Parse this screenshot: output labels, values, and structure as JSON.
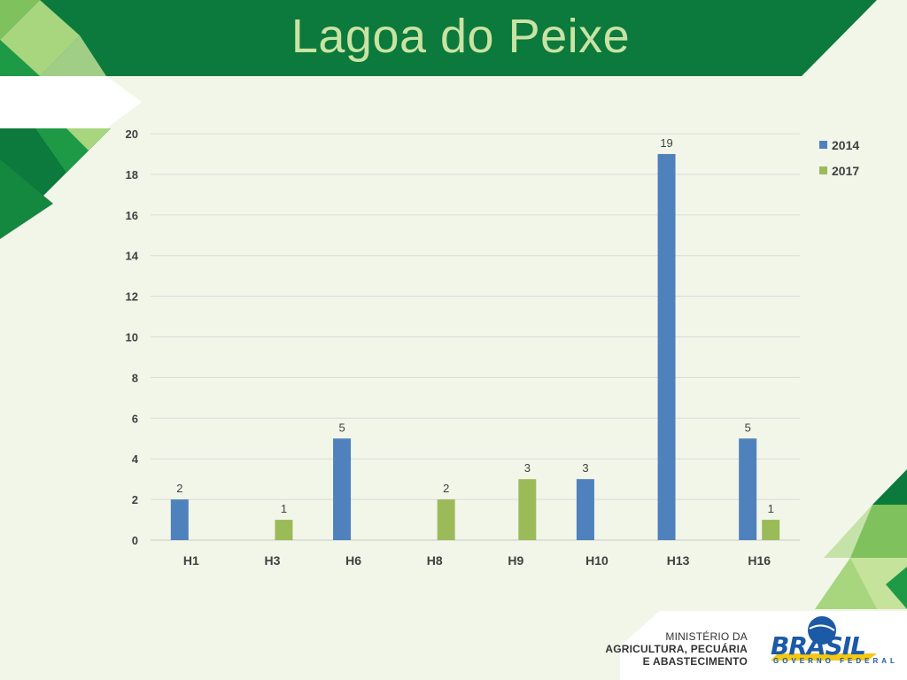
{
  "slide": {
    "title": "Lagoa do Peixe",
    "footer": {
      "ministry_line1": "MINISTÉRIO DA",
      "ministry_line2": "AGRICULTURA, PECUÁRIA",
      "ministry_line3": "E ABASTECIMENTO",
      "brand": "BRASIL",
      "brand_sub": "GOVERNO FEDERAL"
    },
    "colors": {
      "banner": "#0b7a3c",
      "background": "#f2f6e9",
      "title_text": "#c9e3a3"
    }
  },
  "chart_data": {
    "type": "bar",
    "categories": [
      "H1",
      "H3",
      "H6",
      "H8",
      "H9",
      "H10",
      "H13",
      "H16"
    ],
    "series": [
      {
        "name": "2014",
        "color": "#4f81bd",
        "values": [
          2,
          null,
          5,
          null,
          null,
          3,
          19,
          5
        ]
      },
      {
        "name": "2017",
        "color": "#9bbb59",
        "values": [
          null,
          1,
          null,
          2,
          3,
          null,
          null,
          1
        ]
      }
    ],
    "yticks": [
      "0",
      "2",
      "4",
      "6",
      "8",
      "10",
      "12",
      "14",
      "16",
      "18",
      "20"
    ],
    "ylim": [
      0,
      20
    ],
    "grid": true,
    "legend": "top-right",
    "data_labels": true
  }
}
